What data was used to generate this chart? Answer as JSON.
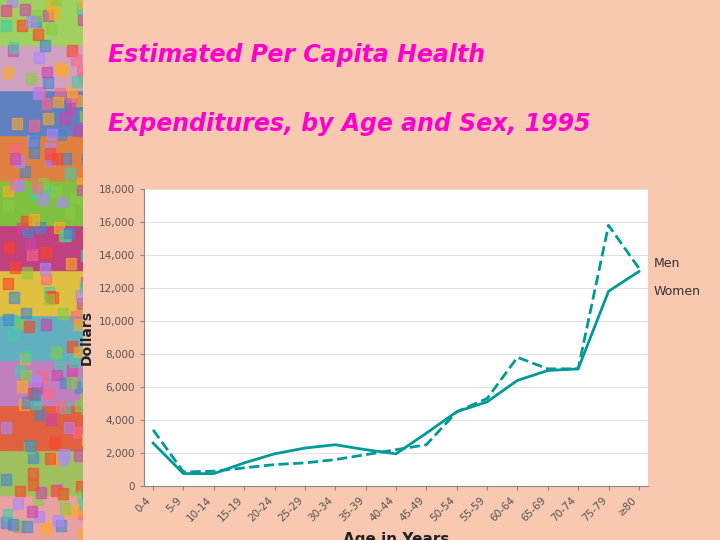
{
  "title_line1": "Estimated Per Capita Health",
  "title_line2": "Expenditures, by Age and Sex, 1995",
  "title_color": "#FF00CC",
  "xlabel": "Age in Years",
  "ylabel": "Dollars",
  "ylim": [
    0,
    18000
  ],
  "yticks": [
    0,
    2000,
    4000,
    6000,
    8000,
    10000,
    12000,
    14000,
    16000,
    18000
  ],
  "age_categories": [
    "0-4",
    "5-9",
    "10-14",
    "15-19",
    "20-24",
    "25-29",
    "30-34",
    "35-39",
    "40-44",
    "45-49",
    "50-54",
    "55-59",
    "60-64",
    "65-69",
    "70-74",
    "75-79",
    "≥80"
  ],
  "men_values": [
    3400,
    850,
    900,
    1100,
    1300,
    1400,
    1600,
    1900,
    2200,
    2500,
    4500,
    5300,
    7800,
    7100,
    7100,
    15800,
    13200
  ],
  "women_values": [
    2600,
    750,
    750,
    1400,
    1950,
    2300,
    2500,
    2200,
    1950,
    3200,
    4500,
    5100,
    6400,
    7000,
    7100,
    11800,
    13000
  ],
  "line_color": "#009999",
  "line_width": 2.0,
  "chart_bg_color": "#FFFFFF",
  "top_bg_color": "#F4A0A8",
  "bottom_bg_color": "#F8C8B0",
  "overall_bg_left": "#F4A0A8",
  "overall_bg_right": "#F8C8B0"
}
